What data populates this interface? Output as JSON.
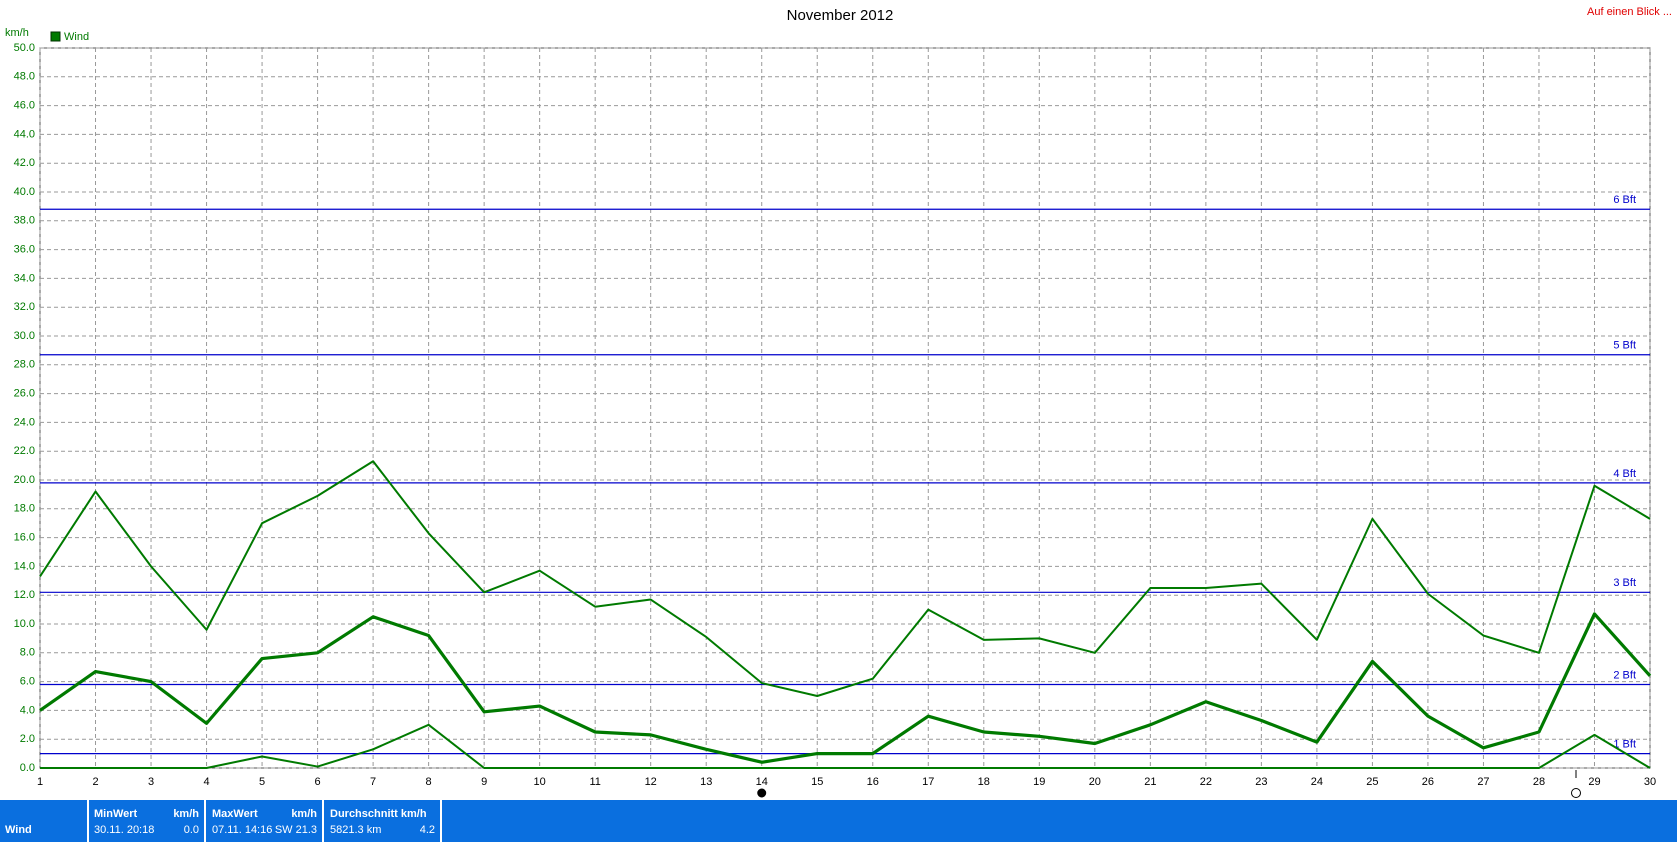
{
  "chart_data": {
    "type": "line",
    "title": "November 2012",
    "corner_link": "Auf einen Blick ...",
    "y_unit": "km/h",
    "x": [
      1,
      2,
      3,
      4,
      5,
      6,
      7,
      8,
      9,
      10,
      11,
      12,
      13,
      14,
      15,
      16,
      17,
      18,
      19,
      20,
      21,
      22,
      23,
      24,
      25,
      26,
      27,
      28,
      29,
      30
    ],
    "xlim": [
      1,
      30
    ],
    "xticks": [
      1,
      2,
      3,
      4,
      5,
      6,
      7,
      8,
      9,
      10,
      11,
      12,
      13,
      14,
      15,
      16,
      17,
      18,
      19,
      20,
      21,
      22,
      23,
      24,
      25,
      26,
      27,
      28,
      29,
      30
    ],
    "series": [
      {
        "name": "Wind",
        "color": "#007a00",
        "values": [
          4.0,
          6.7,
          6.0,
          3.1,
          7.6,
          8.0,
          10.5,
          9.2,
          3.9,
          4.3,
          2.5,
          2.3,
          1.3,
          0.4,
          1.0,
          1.0,
          3.6,
          2.5,
          2.2,
          1.7,
          3.0,
          4.6,
          3.3,
          1.8,
          7.4,
          3.6,
          1.4,
          2.5,
          10.7,
          6.4
        ],
        "high": [
          13.3,
          19.2,
          14.0,
          9.6,
          17.0,
          18.9,
          21.3,
          16.3,
          12.2,
          13.7,
          11.2,
          11.7,
          9.1,
          5.9,
          5.0,
          6.2,
          11.0,
          8.9,
          9.0,
          8.0,
          12.5,
          12.5,
          12.8,
          8.9,
          17.3,
          12.1,
          9.2,
          8.0,
          19.6,
          17.3
        ],
        "low": [
          0,
          0,
          0,
          0,
          0.8,
          0.1,
          1.3,
          3.0,
          0,
          0,
          0,
          0,
          0,
          0,
          0,
          0,
          0,
          0,
          0,
          0,
          0,
          0,
          0,
          0,
          0,
          0,
          0,
          0,
          2.3,
          0
        ]
      }
    ],
    "reference_lines": [
      {
        "label": "1 Bft",
        "value": 1.0
      },
      {
        "label": "2 Bft",
        "value": 5.8
      },
      {
        "label": "3 Bft",
        "value": 12.2
      },
      {
        "label": "4 Bft",
        "value": 19.8
      },
      {
        "label": "5 Bft",
        "value": 28.7
      },
      {
        "label": "6 Bft",
        "value": 38.8
      }
    ],
    "reference_color": "#0000cc",
    "ylim": [
      0,
      50
    ],
    "yticks": [
      {
        "value": 0,
        "label": "0.0"
      },
      {
        "value": 2,
        "label": "2.0"
      },
      {
        "value": 4,
        "label": "4.0"
      },
      {
        "value": 6,
        "label": "6.0"
      },
      {
        "value": 8,
        "label": "8.0"
      },
      {
        "value": 10,
        "label": "10.0"
      },
      {
        "value": 12,
        "label": "12.0"
      },
      {
        "value": 14,
        "label": "14.0"
      },
      {
        "value": 16,
        "label": "16.0"
      },
      {
        "value": 18,
        "label": "18.0"
      },
      {
        "value": 20,
        "label": "20.0"
      },
      {
        "value": 22,
        "label": "22.0"
      },
      {
        "value": 24,
        "label": "24.0"
      },
      {
        "value": 26,
        "label": "26.0"
      },
      {
        "value": 28,
        "label": "28.0"
      },
      {
        "value": 30,
        "label": "30.0"
      },
      {
        "value": 32,
        "label": "32.0"
      },
      {
        "value": 34,
        "label": "34.0"
      },
      {
        "value": 36,
        "label": "36.0"
      },
      {
        "value": 38,
        "label": "38.0"
      },
      {
        "value": 40,
        "label": "40.0"
      },
      {
        "value": 42,
        "label": "42.0"
      },
      {
        "value": 44,
        "label": "44.0"
      },
      {
        "value": 46,
        "label": "46.0"
      },
      {
        "value": 48,
        "label": "48.0"
      },
      {
        "value": 50,
        "label": "50.0"
      }
    ],
    "grid": true
  },
  "summary": {
    "label": "Wind",
    "min": {
      "title": "MinWert",
      "unit": "km/h",
      "when": "30.11.  20:18",
      "value": "0.0"
    },
    "max": {
      "title": "MaxWert",
      "unit": "km/h",
      "when": "07.11.  14:16",
      "value": "SW 21.3"
    },
    "avg": {
      "title": "Durchschnitt km/h",
      "distance": "5821.3 km",
      "value": "4.2"
    }
  }
}
